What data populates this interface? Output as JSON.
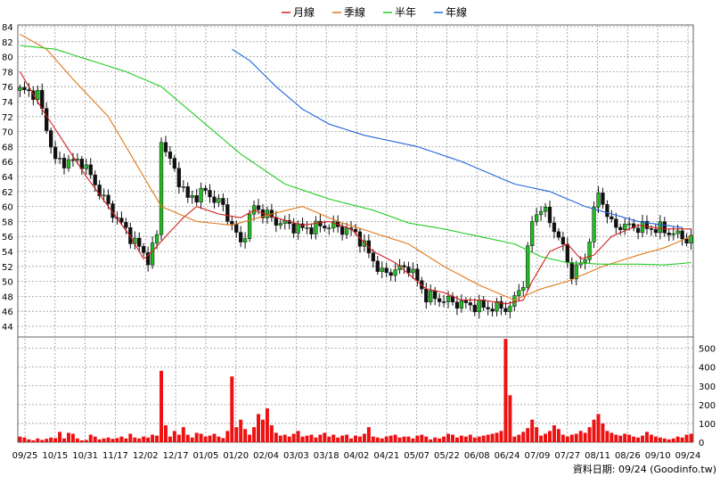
{
  "legend": {
    "items": [
      {
        "label": "月線",
        "color": "#d42020"
      },
      {
        "label": "季線",
        "color": "#e07818"
      },
      {
        "label": "半年",
        "color": "#22cc22"
      },
      {
        "label": "年線",
        "color": "#2266dd"
      }
    ]
  },
  "footer": {
    "source_label": "資料日期: 09/24  (Goodinfo.tw)"
  },
  "chart_data": [
    {
      "type": "candlestick",
      "title": "",
      "ylim": [
        44,
        84
      ],
      "y_ticks": [
        44,
        46,
        48,
        50,
        52,
        54,
        56,
        58,
        60,
        62,
        64,
        66,
        68,
        70,
        72,
        74,
        76,
        78,
        80,
        82,
        84
      ],
      "y_axis_side": "left",
      "grid": true,
      "up_color": "#22bb22",
      "down_color": "#111111",
      "x_tick_labels": [
        "09/25",
        "10/15",
        "10/31",
        "11/17",
        "12/02",
        "12/17",
        "01/05",
        "01/20",
        "02/04",
        "03/03",
        "03/18",
        "04/02",
        "04/21",
        "05/07",
        "05/22",
        "06/08",
        "06/24",
        "07/09",
        "07/27",
        "08/11",
        "08/26",
        "09/10",
        "09/24"
      ],
      "close_anchors": [
        [
          0,
          75.5
        ],
        [
          4,
          75
        ],
        [
          8,
          66
        ],
        [
          14,
          66
        ],
        [
          20,
          60
        ],
        [
          25,
          56
        ],
        [
          29,
          53
        ],
        [
          31,
          56
        ],
        [
          32,
          69
        ],
        [
          34,
          66
        ],
        [
          38,
          61
        ],
        [
          42,
          62
        ],
        [
          46,
          60
        ],
        [
          50,
          55
        ],
        [
          53,
          60
        ],
        [
          58,
          58
        ],
        [
          64,
          57
        ],
        [
          70,
          57.5
        ],
        [
          76,
          56.5
        ],
        [
          82,
          51
        ],
        [
          88,
          52
        ],
        [
          92,
          48
        ],
        [
          100,
          47
        ],
        [
          106,
          46.5
        ],
        [
          111,
          46.5
        ],
        [
          114,
          50
        ],
        [
          116,
          58
        ],
        [
          118,
          60
        ],
        [
          122,
          56
        ],
        [
          125,
          51
        ],
        [
          128,
          53
        ],
        [
          131,
          62
        ],
        [
          134,
          57.5
        ],
        [
          145,
          57
        ],
        [
          152,
          55.5
        ]
      ],
      "series": [
        {
          "name": "月線",
          "color": "#d42020",
          "values": [
            [
              0,
              78
            ],
            [
              5,
              73
            ],
            [
              10,
              68.5
            ],
            [
              15,
              64
            ],
            [
              20,
              60
            ],
            [
              25,
              56
            ],
            [
              28,
              53
            ],
            [
              30,
              54
            ],
            [
              33,
              56
            ],
            [
              37,
              58.5
            ],
            [
              40,
              60
            ],
            [
              45,
              59
            ],
            [
              50,
              58.5
            ],
            [
              53,
              59.5
            ],
            [
              58,
              58.5
            ],
            [
              64,
              57.5
            ],
            [
              70,
              58
            ],
            [
              75,
              57
            ],
            [
              80,
              54
            ],
            [
              85,
              52.5
            ],
            [
              88,
              51
            ],
            [
              92,
              49
            ],
            [
              96,
              48.5
            ],
            [
              100,
              47.5
            ],
            [
              105,
              47.5
            ],
            [
              110,
              47
            ],
            [
              114,
              47.5
            ],
            [
              116,
              50
            ],
            [
              120,
              54
            ],
            [
              124,
              55
            ],
            [
              127,
              53
            ],
            [
              130,
              53.5
            ],
            [
              134,
              56
            ],
            [
              140,
              57.5
            ],
            [
              146,
              57
            ],
            [
              152,
              57
            ]
          ]
        },
        {
          "name": "季線",
          "color": "#e07818",
          "values": [
            [
              0,
              83
            ],
            [
              6,
              81
            ],
            [
              12,
              77
            ],
            [
              20,
              72
            ],
            [
              27,
              65
            ],
            [
              32,
              60
            ],
            [
              40,
              58
            ],
            [
              48,
              57.5
            ],
            [
              57,
              59
            ],
            [
              64,
              60
            ],
            [
              72,
              58
            ],
            [
              80,
              56.5
            ],
            [
              88,
              55
            ],
            [
              96,
              52
            ],
            [
              104,
              49.5
            ],
            [
              112,
              47.5
            ],
            [
              118,
              49
            ],
            [
              124,
              50
            ],
            [
              132,
              52
            ],
            [
              140,
              53.5
            ],
            [
              146,
              54.5
            ],
            [
              152,
              56
            ]
          ]
        },
        {
          "name": "半年",
          "color": "#22cc22",
          "values": [
            [
              0,
              81.5
            ],
            [
              8,
              81
            ],
            [
              16,
              79.5
            ],
            [
              24,
              78
            ],
            [
              32,
              76
            ],
            [
              40,
              72
            ],
            [
              50,
              67
            ],
            [
              60,
              63
            ],
            [
              70,
              61
            ],
            [
              80,
              59.5
            ],
            [
              88,
              57.8
            ],
            [
              96,
              57
            ],
            [
              104,
              56
            ],
            [
              112,
              55
            ],
            [
              118,
              53.3
            ],
            [
              124,
              52.5
            ],
            [
              132,
              52.3
            ],
            [
              140,
              52.3
            ],
            [
              146,
              52.2
            ],
            [
              152,
              52.5
            ]
          ]
        },
        {
          "name": "年線",
          "color": "#2266dd",
          "values": [
            [
              48,
              81
            ],
            [
              52,
              79.5
            ],
            [
              58,
              76
            ],
            [
              64,
              73
            ],
            [
              70,
              71
            ],
            [
              78,
              69.5
            ],
            [
              90,
              68
            ],
            [
              100,
              66
            ],
            [
              106,
              64.5
            ],
            [
              112,
              63
            ],
            [
              120,
              62
            ],
            [
              128,
              60
            ],
            [
              134,
              59
            ],
            [
              140,
              58
            ],
            [
              146,
              57.5
            ],
            [
              150,
              57.2
            ]
          ]
        }
      ]
    },
    {
      "type": "bar",
      "title": "",
      "ylim": [
        0,
        560
      ],
      "y_ticks": [
        0,
        100,
        200,
        300,
        400,
        500
      ],
      "y_axis_side": "right",
      "grid": true,
      "color": "#ee1111",
      "values": [
        30,
        25,
        15,
        10,
        20,
        12,
        18,
        25,
        22,
        55,
        20,
        50,
        45,
        20,
        10,
        12,
        40,
        30,
        15,
        20,
        25,
        18,
        22,
        30,
        20,
        45,
        25,
        20,
        30,
        25,
        40,
        35,
        380,
        90,
        30,
        60,
        40,
        80,
        40,
        25,
        50,
        45,
        30,
        35,
        45,
        30,
        22,
        60,
        350,
        80,
        120,
        70,
        40,
        80,
        150,
        120,
        180,
        90,
        50,
        35,
        40,
        30,
        45,
        60,
        30,
        35,
        40,
        25,
        40,
        50,
        30,
        40,
        25,
        35,
        40,
        20,
        35,
        30,
        45,
        80,
        30,
        25,
        20,
        30,
        35,
        40,
        25,
        30,
        30,
        20,
        35,
        40,
        30,
        15,
        25,
        20,
        30,
        45,
        40,
        25,
        35,
        30,
        40,
        25,
        30,
        35,
        40,
        45,
        50,
        60,
        550,
        250,
        30,
        40,
        55,
        75,
        120,
        80,
        35,
        45,
        60,
        90,
        70,
        40,
        30,
        40,
        45,
        60,
        50,
        80,
        120,
        150,
        100,
        60,
        50,
        40,
        35,
        45,
        40,
        30,
        25,
        35,
        55,
        40,
        30,
        25,
        20,
        15,
        20,
        30,
        25,
        40,
        45
      ]
    }
  ]
}
